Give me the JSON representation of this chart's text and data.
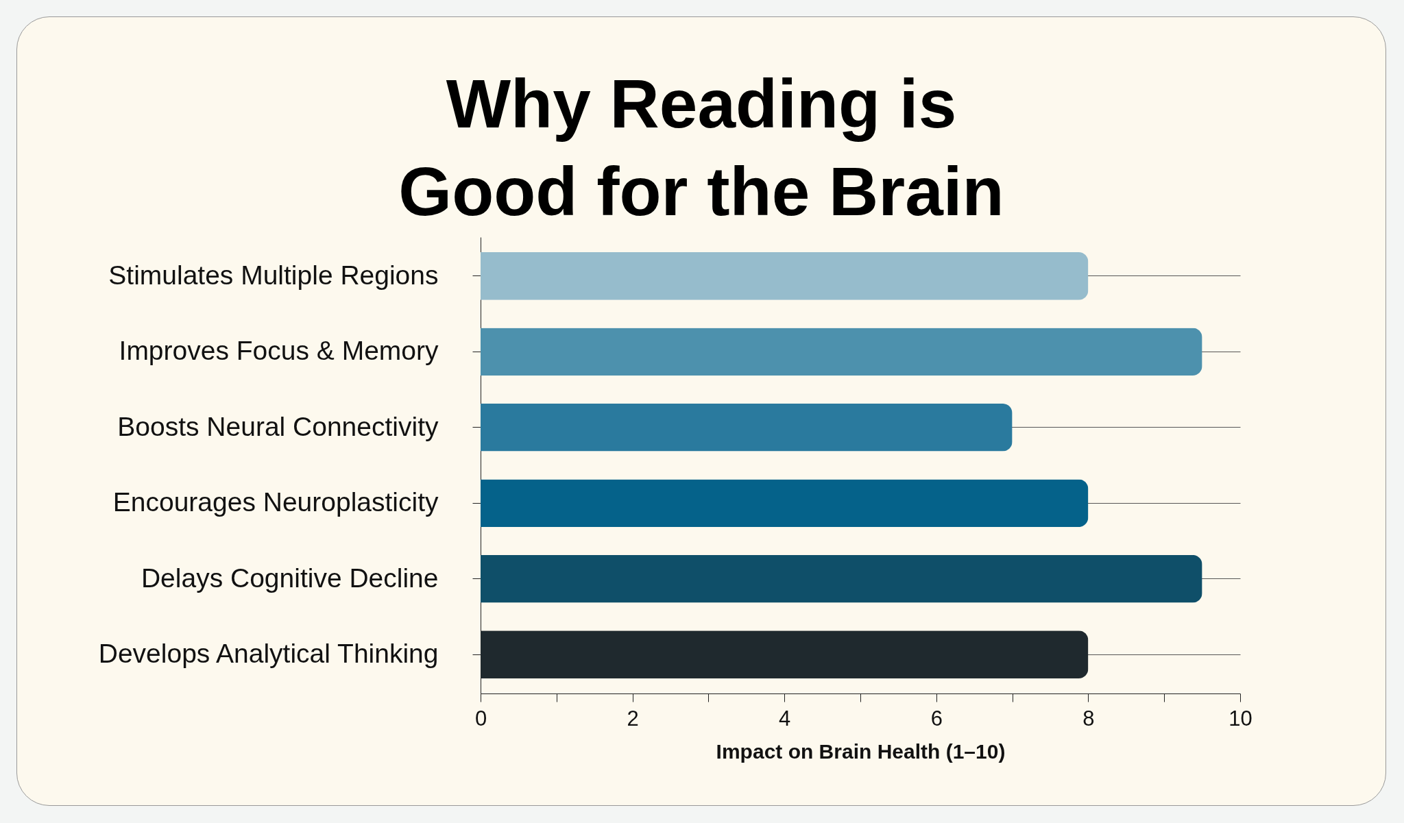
{
  "chart_data": {
    "type": "bar",
    "title": "Why Reading is Good for the Brain",
    "orientation": "horizontal",
    "categories": [
      "Stimulates Multiple Regions",
      "Improves Focus & Memory",
      "Boosts Neural Connectivity",
      "Encourages Neuroplasticity",
      "Delays Cognitive Decline",
      "Develops Analytical Thinking"
    ],
    "values": [
      8,
      9.5,
      7,
      8,
      9.5,
      8
    ],
    "colors": [
      "#96bccc",
      "#4d91ad",
      "#2a7a9e",
      "#05628a",
      "#0f4f69",
      "#1f292e"
    ],
    "xlabel": "Impact on Brain Health (1–10)",
    "xlim": [
      0,
      10
    ],
    "xticks": [
      0,
      {
        "value": 1,
        "label": null
      },
      2,
      {
        "value": 3,
        "label": null
      },
      4,
      {
        "value": 5,
        "label": null
      },
      6,
      {
        "value": 7,
        "label": null
      },
      8,
      {
        "value": 9,
        "label": null
      },
      10
    ],
    "grid": "y",
    "legend": false
  }
}
